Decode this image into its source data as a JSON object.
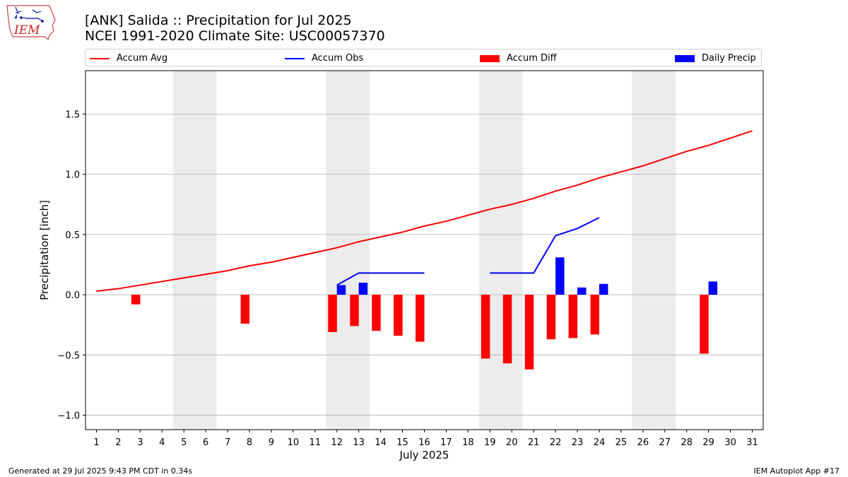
{
  "logo": {
    "text": "IEM"
  },
  "title": {
    "line1": "[ANK] Salida :: Precipitation for Jul 2025",
    "line2": "NCEI 1991-2020 Climate Site: USC00057370"
  },
  "footer": {
    "left": "Generated at 29 Jul 2025 9:43 PM CDT in 0.34s",
    "right": "IEM Autoplot App #17"
  },
  "colors": {
    "accum_avg": "#ff0000",
    "accum_obs": "#0000ff",
    "accum_diff": "#ff0000",
    "daily_precip": "#0000ff",
    "weekend_shade": "#ececec",
    "grid": "#b0b0b0"
  },
  "chart_data": {
    "type": "bar",
    "xlabel": "July 2025",
    "ylabel": "Precipitation [inch]",
    "ylim": [
      -1.12,
      1.86
    ],
    "xlim": [
      0.5,
      31.5
    ],
    "yticks": [
      -1.0,
      -0.5,
      0.0,
      0.5,
      1.0,
      1.5
    ],
    "ytick_labels": [
      "−1.0",
      "−0.5",
      "0.0",
      "0.5",
      "1.0",
      "1.5"
    ],
    "x": [
      1,
      2,
      3,
      4,
      5,
      6,
      7,
      8,
      9,
      10,
      11,
      12,
      13,
      14,
      15,
      16,
      17,
      18,
      19,
      20,
      21,
      22,
      23,
      24,
      25,
      26,
      27,
      28,
      29,
      30,
      31
    ],
    "xtick_labels": [
      "1",
      "2",
      "3",
      "4",
      "5",
      "6",
      "7",
      "8",
      "9",
      "10",
      "11",
      "12",
      "13",
      "14",
      "15",
      "16",
      "17",
      "18",
      "19",
      "20",
      "21",
      "22",
      "23",
      "24",
      "25",
      "26",
      "27",
      "28",
      "29",
      "30",
      "31"
    ],
    "grid": "horizontal",
    "legend_position": "top, above plot",
    "weekend_days": [
      [
        5,
        6
      ],
      [
        12,
        13
      ],
      [
        19,
        20
      ],
      [
        26,
        27
      ]
    ],
    "series": [
      {
        "name": "Accum Avg",
        "kind": "line",
        "x": [
          1,
          2,
          3,
          4,
          5,
          6,
          7,
          8,
          9,
          10,
          11,
          12,
          13,
          14,
          15,
          16,
          17,
          18,
          19,
          20,
          21,
          22,
          23,
          24,
          25,
          26,
          27,
          28,
          29,
          30,
          31
        ],
        "values": [
          0.03,
          0.05,
          0.08,
          0.11,
          0.14,
          0.17,
          0.2,
          0.24,
          0.27,
          0.31,
          0.35,
          0.39,
          0.44,
          0.48,
          0.52,
          0.57,
          0.61,
          0.66,
          0.71,
          0.75,
          0.8,
          0.86,
          0.91,
          0.97,
          1.02,
          1.07,
          1.13,
          1.19,
          1.24,
          1.3,
          1.36
        ]
      },
      {
        "name": "Accum Obs",
        "kind": "line",
        "segments": [
          {
            "x": [
              12,
              13,
              14,
              15,
              16
            ],
            "values": [
              0.08,
              0.18,
              0.18,
              0.18,
              0.18
            ]
          },
          {
            "x": [
              19,
              20,
              21,
              22,
              23,
              24
            ],
            "values": [
              0.18,
              0.18,
              0.18,
              0.49,
              0.55,
              0.64
            ]
          }
        ]
      },
      {
        "name": "Accum Diff",
        "kind": "bar",
        "offset": -0.2,
        "x": [
          3,
          8,
          12,
          13,
          14,
          15,
          16,
          19,
          20,
          21,
          22,
          23,
          24,
          29
        ],
        "values": [
          -0.08,
          -0.24,
          -0.31,
          -0.26,
          -0.3,
          -0.34,
          -0.39,
          -0.53,
          -0.57,
          -0.62,
          -0.37,
          -0.36,
          -0.33,
          -0.49
        ]
      },
      {
        "name": "Daily Precip",
        "kind": "bar",
        "offset": 0.2,
        "x": [
          12,
          13,
          22,
          23,
          24,
          29
        ],
        "values": [
          0.08,
          0.1,
          0.31,
          0.06,
          0.09,
          0.11
        ]
      }
    ]
  }
}
